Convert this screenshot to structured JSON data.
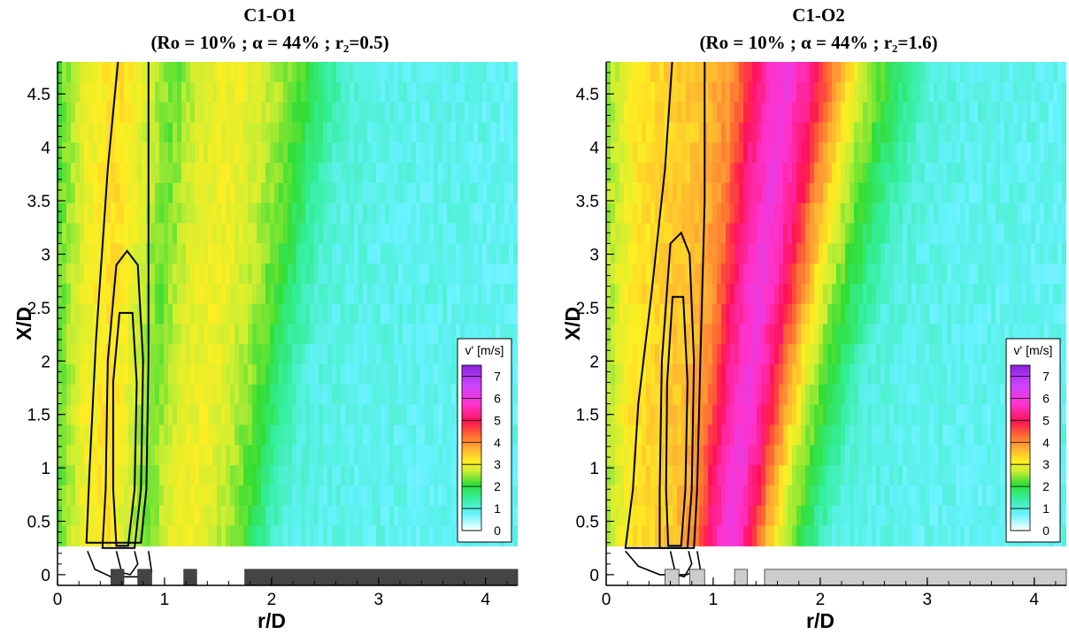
{
  "chart_data": [
    {
      "type": "heatmap",
      "title": "C1-O1",
      "subtitle": "(Ro = 10% ; α = 44% ; r₂=0.5)",
      "xlabel": "r/D",
      "ylabel": "X/D",
      "xlim": [
        0,
        4.3
      ],
      "ylim": [
        -0.1,
        4.8
      ],
      "xticks": [
        "0",
        "1",
        "2",
        "3",
        "4"
      ],
      "yticks": [
        "0",
        "0.5",
        "1",
        "1.5",
        "2",
        "2.5",
        "3",
        "3.5",
        "4",
        "4.5"
      ],
      "colorbar": {
        "title": "v' [m/s]",
        "range": [
          0,
          7.5
        ],
        "ticks": [
          "0",
          "1",
          "2",
          "3",
          "4",
          "5",
          "6",
          "7"
        ]
      },
      "field_profile": [
        [
          0.0,
          2.2
        ],
        [
          0.3,
          3.0
        ],
        [
          0.6,
          3.3
        ],
        [
          0.9,
          2.7
        ],
        [
          1.1,
          2.3
        ],
        [
          1.4,
          2.9
        ],
        [
          1.75,
          3.0
        ],
        [
          2.0,
          2.7
        ],
        [
          2.3,
          2.2
        ],
        [
          2.55,
          1.5
        ],
        [
          2.8,
          1.0
        ],
        [
          3.2,
          0.9
        ],
        [
          4.3,
          0.85
        ]
      ],
      "data_region_ymin": 0.27,
      "green_edge_at_ymin": 1.9,
      "green_edge_at_ymax": 2.55,
      "contours": [
        {
          "points": [
            [
              0.55,
              0.27
            ],
            [
              0.52,
              0.8
            ],
            [
              0.52,
              1.8
            ],
            [
              0.58,
              2.45
            ],
            [
              0.7,
              2.45
            ],
            [
              0.74,
              1.8
            ],
            [
              0.72,
              0.8
            ],
            [
              0.66,
              0.27
            ]
          ]
        },
        {
          "points": [
            [
              0.42,
              0.25
            ],
            [
              0.45,
              0.8
            ],
            [
              0.47,
              2.0
            ],
            [
              0.55,
              2.9
            ],
            [
              0.65,
              3.03
            ],
            [
              0.75,
              2.9
            ],
            [
              0.8,
              2.0
            ],
            [
              0.78,
              0.8
            ],
            [
              0.72,
              0.25
            ]
          ]
        },
        {
          "points": [
            [
              0.27,
              0.3
            ],
            [
              0.3,
              1.0
            ],
            [
              0.36,
              2.2
            ],
            [
              0.47,
              3.8
            ],
            [
              0.57,
              4.85
            ],
            [
              0.85,
              4.85
            ],
            [
              0.85,
              3.5
            ],
            [
              0.85,
              2.0
            ],
            [
              0.83,
              0.8
            ],
            [
              0.78,
              0.3
            ]
          ]
        }
      ],
      "bottom_contours": [
        {
          "points": [
            [
              0.28,
              0.22
            ],
            [
              0.35,
              0.05
            ],
            [
              0.5,
              -0.02
            ],
            [
              0.75,
              -0.02
            ],
            [
              0.88,
              0.03
            ],
            [
              0.85,
              0.22
            ]
          ]
        },
        {
          "points": [
            [
              0.55,
              0.22
            ],
            [
              0.6,
              0.02
            ],
            [
              0.68,
              0.0
            ],
            [
              0.75,
              0.1
            ],
            [
              0.72,
              0.22
            ]
          ]
        }
      ],
      "wall_color": "#444444",
      "walls": [
        [
          0.5,
          0.62
        ],
        [
          0.75,
          0.88
        ],
        [
          1.18,
          1.3
        ],
        [
          1.75,
          4.3
        ]
      ]
    },
    {
      "type": "heatmap",
      "title": "C1-O2",
      "subtitle": "(Ro = 10% ; α = 44% ;  r₂=1.6)",
      "xlabel": "r/D",
      "ylabel": "X/D",
      "xlim": [
        0,
        4.3
      ],
      "ylim": [
        -0.1,
        4.8
      ],
      "xticks": [
        "0",
        "1",
        "2",
        "3",
        "4"
      ],
      "yticks": [
        "0",
        "0.5",
        "1",
        "1.5",
        "2",
        "2.5",
        "3",
        "3.5",
        "4",
        "4.5"
      ],
      "colorbar": {
        "title": "v' [m/s]",
        "range": [
          0,
          7.5
        ],
        "ticks": [
          "0",
          "1",
          "2",
          "3",
          "4",
          "5",
          "6",
          "7"
        ]
      },
      "field_profile": [
        [
          0.0,
          2.5
        ],
        [
          0.3,
          3.2
        ],
        [
          0.6,
          3.4
        ],
        [
          0.9,
          3.5
        ],
        [
          1.2,
          4.0
        ],
        [
          1.45,
          5.3
        ],
        [
          1.7,
          6.0
        ],
        [
          1.95,
          5.2
        ],
        [
          2.15,
          4.0
        ],
        [
          2.4,
          2.8
        ],
        [
          2.75,
          1.8
        ],
        [
          3.1,
          1.0
        ],
        [
          3.5,
          0.9
        ],
        [
          4.3,
          0.85
        ]
      ],
      "data_region_ymin": 0.27,
      "green_edge_at_ymin": 1.95,
      "green_edge_at_ymax": 2.9,
      "contours": [
        {
          "points": [
            [
              0.58,
              0.27
            ],
            [
              0.56,
              0.8
            ],
            [
              0.57,
              1.8
            ],
            [
              0.62,
              2.6
            ],
            [
              0.72,
              2.6
            ],
            [
              0.76,
              1.8
            ],
            [
              0.74,
              0.8
            ],
            [
              0.7,
              0.27
            ]
          ]
        },
        {
          "points": [
            [
              0.5,
              0.25
            ],
            [
              0.5,
              0.8
            ],
            [
              0.52,
              2.0
            ],
            [
              0.6,
              3.1
            ],
            [
              0.7,
              3.2
            ],
            [
              0.78,
              3.0
            ],
            [
              0.82,
              2.0
            ],
            [
              0.8,
              0.8
            ],
            [
              0.76,
              0.25
            ]
          ]
        },
        {
          "points": [
            [
              0.18,
              0.25
            ],
            [
              0.25,
              0.8
            ],
            [
              0.3,
              1.6
            ],
            [
              0.42,
              2.6
            ],
            [
              0.55,
              3.8
            ],
            [
              0.62,
              4.85
            ],
            [
              0.92,
              4.85
            ],
            [
              0.92,
              3.5
            ],
            [
              0.88,
              2.0
            ],
            [
              0.85,
              0.8
            ],
            [
              0.82,
              0.25
            ]
          ]
        }
      ],
      "bottom_contours": [
        {
          "points": [
            [
              0.18,
              0.22
            ],
            [
              0.3,
              0.08
            ],
            [
              0.5,
              0.0
            ],
            [
              0.75,
              0.0
            ],
            [
              0.88,
              0.05
            ],
            [
              0.85,
              0.22
            ]
          ]
        },
        {
          "points": [
            [
              0.6,
              0.22
            ],
            [
              0.65,
              0.0
            ],
            [
              0.73,
              -0.02
            ],
            [
              0.8,
              0.1
            ],
            [
              0.77,
              0.22
            ]
          ]
        }
      ],
      "wall_color": "#cccccc",
      "walls": [
        [
          0.55,
          0.68
        ],
        [
          0.78,
          0.92
        ],
        [
          1.2,
          1.32
        ],
        [
          1.48,
          4.3
        ]
      ]
    }
  ]
}
